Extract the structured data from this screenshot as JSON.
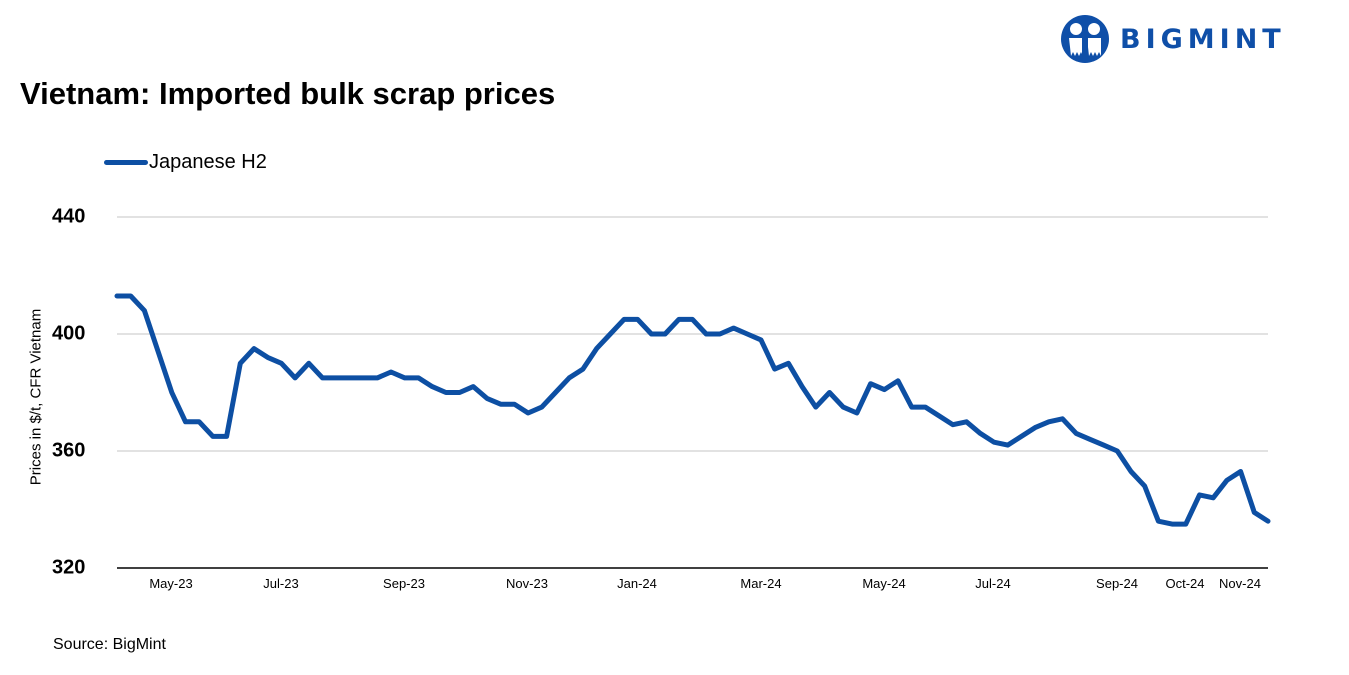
{
  "header": {
    "brand": "BIGMINT",
    "brand_color": "#0f4fa8"
  },
  "chart": {
    "title": "Vietnam: Imported bulk scrap prices",
    "legend_label": "Japanese H2",
    "ylabel": "Prices in $/t, CFR Vietnam",
    "source": "Source: BigMint",
    "line_color": "#0d4fa3",
    "grid_color": "#d9d9d9",
    "yticks": [
      "440",
      "400",
      "360",
      "320"
    ],
    "xticks": [
      "May-23",
      "Jul-23",
      "Sep-23",
      "Nov-23",
      "Jan-24",
      "Mar-24",
      "May-24",
      "Jul-24",
      "Sep-24",
      "Oct-24",
      "Nov-24"
    ]
  },
  "chart_data": {
    "type": "line",
    "title": "Vietnam: Imported bulk scrap prices",
    "xlabel": "",
    "ylabel": "Prices in $/t, CFR Vietnam",
    "ylim": [
      320,
      440
    ],
    "yticks": [
      320,
      360,
      400,
      440
    ],
    "grid": true,
    "legend_position": "top-left",
    "x_tick_labels": [
      "May-23",
      "Jul-23",
      "Sep-23",
      "Nov-23",
      "Jan-24",
      "Mar-24",
      "May-24",
      "Jul-24",
      "Sep-24",
      "Oct-24",
      "Nov-24"
    ],
    "x_range": "Apr-23 to Nov-24 (weekly)",
    "series": [
      {
        "name": "Japanese H2",
        "color": "#0d4fa3",
        "values": [
          413,
          413,
          408,
          394,
          380,
          370,
          370,
          365,
          365,
          390,
          395,
          392,
          390,
          385,
          390,
          385,
          385,
          385,
          385,
          385,
          387,
          385,
          385,
          382,
          380,
          380,
          382,
          378,
          376,
          376,
          373,
          375,
          380,
          385,
          388,
          395,
          400,
          405,
          405,
          400,
          400,
          405,
          405,
          400,
          400,
          402,
          400,
          398,
          388,
          390,
          382,
          375,
          380,
          375,
          373,
          383,
          381,
          384,
          375,
          375,
          372,
          369,
          370,
          366,
          363,
          362,
          365,
          368,
          370,
          371,
          366,
          364,
          362,
          360,
          353,
          348,
          336,
          335,
          335,
          345,
          344,
          350,
          353,
          339,
          336
        ]
      }
    ]
  }
}
